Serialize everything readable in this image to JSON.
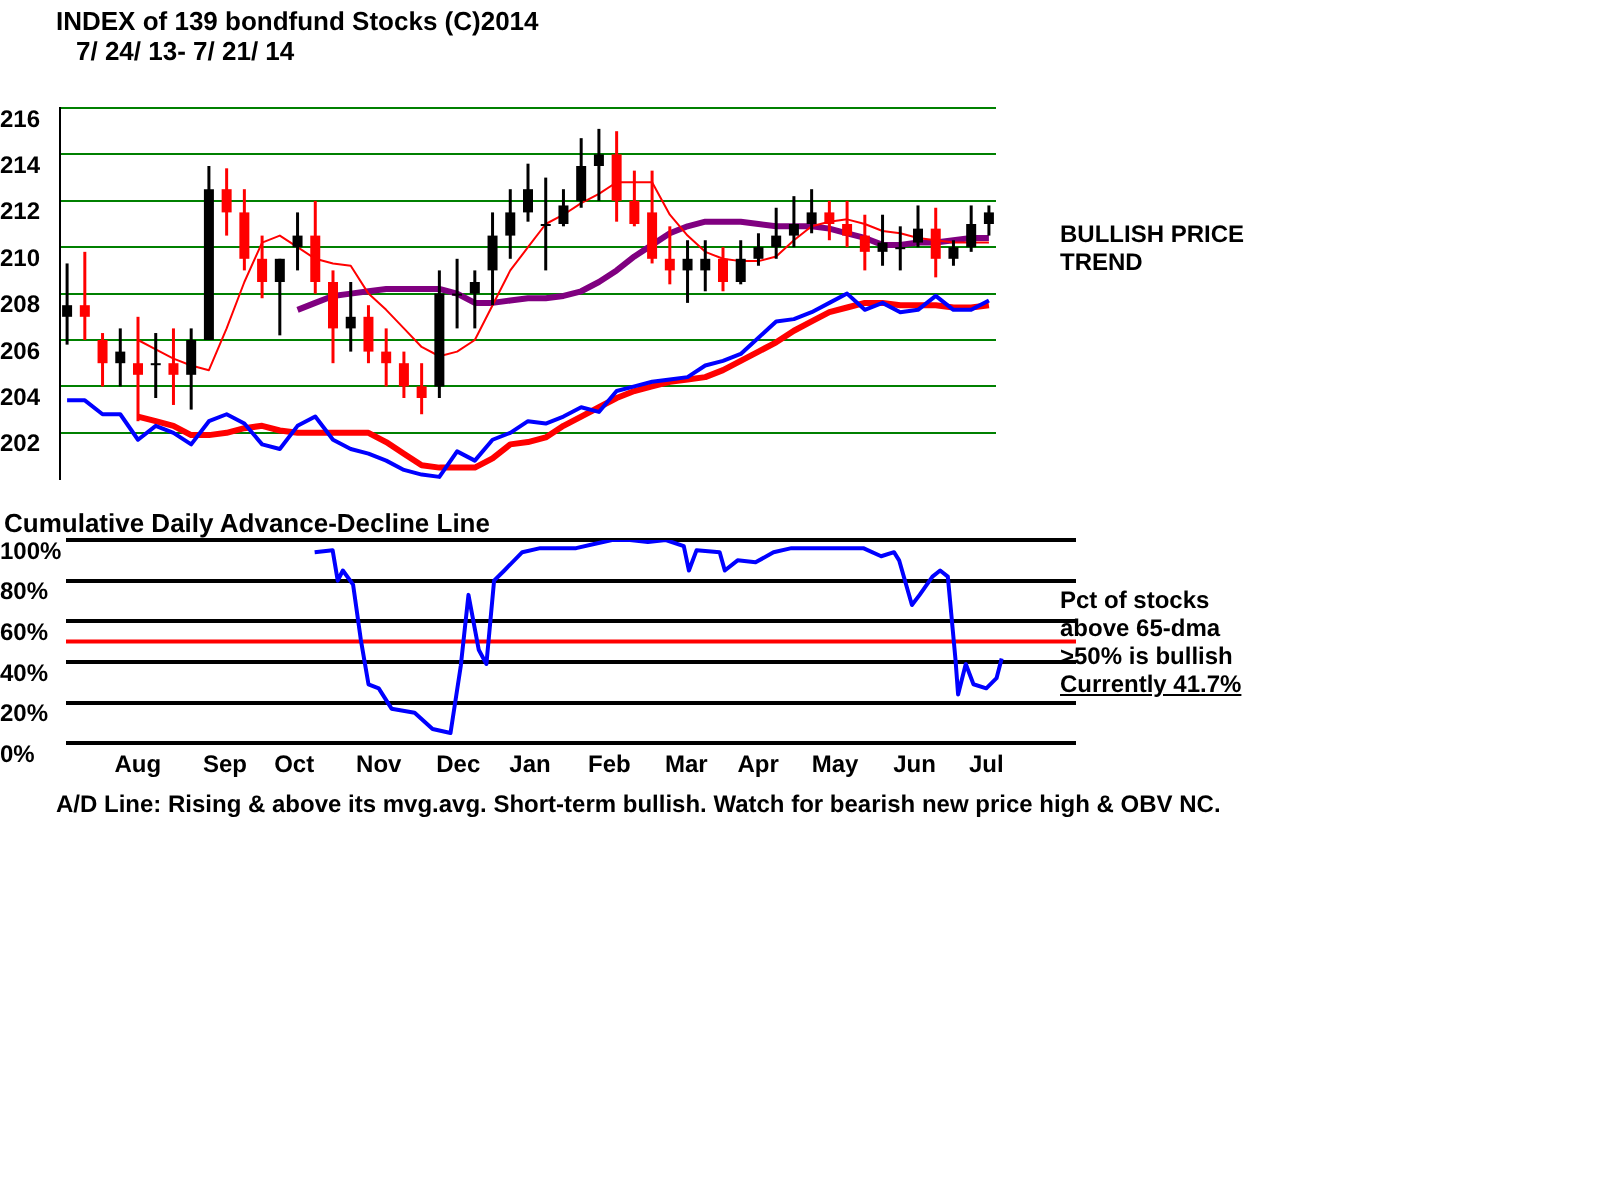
{
  "chart_data": [
    {
      "type": "candlestick",
      "title": "INDEX of  139 bondfund Stocks  (C)2014",
      "subtitle": "7/ 24/ 13- 7/ 21/ 14",
      "categories": [
        null,
        null,
        null,
        null,
        null,
        null,
        null,
        null,
        null,
        null,
        null,
        null,
        null,
        null,
        null,
        null,
        null,
        null,
        null,
        null,
        null,
        null,
        null,
        null,
        null,
        null,
        null,
        null,
        null,
        null,
        null,
        null,
        null,
        null,
        null,
        null,
        null,
        null,
        null,
        null,
        null,
        null,
        null,
        null,
        null,
        null,
        null,
        null,
        null,
        null,
        null,
        null,
        null
      ],
      "colors": [
        "#000000",
        "#ff0000",
        "#ff0000",
        "#000000",
        "#ff0000",
        "#000000",
        "#ff0000",
        "#000000",
        "#000000",
        "#ff0000",
        "#ff0000",
        "#ff0000",
        "#000000",
        "#000000",
        "#ff0000",
        "#ff0000",
        "#000000",
        "#ff0000",
        "#ff0000",
        "#ff0000",
        "#ff0000",
        "#000000",
        "#000000",
        "#000000",
        "#000000",
        "#000000",
        "#000000",
        "#000000",
        "#000000",
        "#000000",
        "#000000",
        "#ff0000",
        "#ff0000",
        "#ff0000",
        "#ff0000",
        "#000000",
        "#000000",
        "#ff0000",
        "#000000",
        "#000000",
        "#000000",
        "#000000",
        "#000000",
        "#ff0000",
        "#ff0000",
        "#ff0000",
        "#000000",
        "#000000",
        "#000000",
        "#ff0000",
        "#000000",
        "#000000",
        "#000000"
      ],
      "ohlc": [
        [
          207,
          209.3,
          205.8,
          207.5
        ],
        [
          207.5,
          209.8,
          206,
          207
        ],
        [
          206,
          206.3,
          204,
          205
        ],
        [
          205,
          206.5,
          204,
          205.5
        ],
        [
          205,
          207,
          202.5,
          204.5
        ],
        [
          205,
          206.3,
          203.5,
          205
        ],
        [
          205,
          206.5,
          203.2,
          204.5
        ],
        [
          204.5,
          206.5,
          203,
          206
        ],
        [
          206,
          213.5,
          206,
          212.5
        ],
        [
          212.5,
          213.4,
          210.5,
          211.5
        ],
        [
          211.5,
          212.5,
          209,
          209.5
        ],
        [
          209.5,
          210.5,
          207.8,
          208.5
        ],
        [
          208.5,
          209.5,
          206.2,
          209.5
        ],
        [
          210,
          211.5,
          209,
          210.5
        ],
        [
          210.5,
          212,
          208,
          208.5
        ],
        [
          208.5,
          209,
          205,
          206.5
        ],
        [
          206.5,
          208.5,
          205.5,
          207
        ],
        [
          207,
          207.5,
          205,
          205.5
        ],
        [
          205.5,
          206.5,
          204,
          205
        ],
        [
          205,
          205.5,
          203.5,
          204
        ],
        [
          204,
          205,
          202.8,
          203.5
        ],
        [
          204,
          209,
          203.5,
          208
        ],
        [
          208,
          209.5,
          206.5,
          208
        ],
        [
          208,
          209,
          206.5,
          208.5
        ],
        [
          209,
          211.5,
          207.5,
          210.5
        ],
        [
          210.5,
          212.5,
          209.5,
          211.5
        ],
        [
          211.5,
          213.6,
          211.1,
          212.5
        ],
        [
          211,
          213,
          209,
          211
        ],
        [
          211,
          212.5,
          210.9,
          211.8
        ],
        [
          212,
          214.7,
          211.7,
          213.5
        ],
        [
          213.5,
          215.1,
          212,
          214
        ],
        [
          214,
          215,
          211.1,
          212
        ],
        [
          212,
          213.3,
          210.9,
          211
        ],
        [
          211.5,
          213.3,
          209.3,
          209.5
        ],
        [
          209.5,
          210.9,
          208.4,
          209
        ],
        [
          209,
          210.3,
          207.6,
          209.5
        ],
        [
          209,
          210.3,
          208.1,
          209.5
        ],
        [
          209.5,
          210,
          208.1,
          208.5
        ],
        [
          208.5,
          210.3,
          208.4,
          209.5
        ],
        [
          209.5,
          210.6,
          209.2,
          210
        ],
        [
          210,
          211.7,
          209.5,
          210.5
        ],
        [
          210.5,
          212.2,
          210,
          211
        ],
        [
          211,
          212.5,
          210.6,
          211.5
        ],
        [
          211.5,
          212,
          210.3,
          211
        ],
        [
          211,
          212,
          210,
          210.5
        ],
        [
          210.5,
          211.4,
          209,
          209.8
        ],
        [
          209.8,
          211.4,
          209.2,
          210.2
        ],
        [
          210,
          210.9,
          209,
          210
        ],
        [
          210.2,
          211.8,
          210,
          210.8
        ],
        [
          210.8,
          211.7,
          208.7,
          209.5
        ],
        [
          209.5,
          210.3,
          209.2,
          210
        ],
        [
          210,
          211.8,
          209.8,
          211
        ],
        [
          211,
          211.8,
          210.5,
          211.5
        ]
      ],
      "series": [
        {
          "type": "line",
          "color": "#ff0000",
          "values": [
            null,
            null,
            null,
            null,
            206.0,
            205.6,
            205.2,
            204.9,
            204.7,
            206.5,
            208.5,
            210.2,
            210.5,
            210,
            209.5,
            209.3,
            209.2,
            208,
            207.3,
            206.5,
            205.7,
            205.3,
            205.5,
            206,
            207.5,
            209,
            210,
            211,
            211.4,
            211.9,
            212.3,
            212.8,
            212.8,
            212.8,
            211.4,
            210.5,
            209.8,
            209.5,
            209.4,
            209.4,
            209.6,
            210.3,
            210.9,
            211.1,
            211.2,
            211,
            210.7,
            210.6,
            210.4,
            210.3,
            210.2,
            210.2,
            210.2
          ]
        },
        {
          "type": "line",
          "color": "#800080",
          "values": [
            null,
            null,
            null,
            null,
            null,
            null,
            null,
            null,
            null,
            null,
            null,
            null,
            null,
            207.3,
            207.6,
            207.9,
            208,
            208.1,
            208.2,
            208.2,
            208.2,
            208.2,
            208,
            207.6,
            207.6,
            207.7,
            207.8,
            207.8,
            207.9,
            208.1,
            208.5,
            209,
            209.6,
            210.1,
            210.6,
            210.9,
            211.1,
            211.1,
            211.1,
            211,
            210.9,
            210.9,
            210.9,
            210.8,
            210.6,
            210.4,
            210.1,
            210.1,
            210.2,
            210.2,
            210.3,
            210.4,
            210.4
          ]
        },
        {
          "type": "line",
          "color": "#0000ff",
          "values": [
            203.4,
            203.4,
            202.8,
            202.8,
            201.7,
            202.3,
            202,
            201.5,
            202.5,
            202.8,
            202.4,
            201.5,
            201.3,
            202.3,
            202.7,
            201.7,
            201.3,
            201.1,
            200.8,
            200.4,
            200.2,
            200.1,
            201.2,
            200.8,
            201.7,
            202,
            202.5,
            202.4,
            202.7,
            203.1,
            202.9,
            203.8,
            204,
            204.2,
            204.3,
            204.4,
            204.9,
            205.1,
            205.4,
            206.1,
            206.8,
            206.9,
            207.2,
            207.6,
            208,
            207.3,
            207.6,
            207.2,
            207.3,
            207.9,
            207.3,
            207.3,
            207.7
          ]
        },
        {
          "type": "line",
          "color": "#ff0000",
          "values": [
            null,
            null,
            null,
            null,
            202.7,
            202.5,
            202.3,
            201.9,
            201.9,
            202,
            202.2,
            202.3,
            202.1,
            202,
            202,
            202,
            202,
            202,
            201.6,
            201.1,
            200.6,
            200.5,
            200.5,
            200.5,
            200.9,
            201.5,
            201.6,
            201.8,
            202.3,
            202.7,
            203.1,
            203.5,
            203.8,
            204,
            204.2,
            204.3,
            204.4,
            204.7,
            205.1,
            205.5,
            205.9,
            206.4,
            206.8,
            207.2,
            207.4,
            207.6,
            207.6,
            207.5,
            207.5,
            207.5,
            207.4,
            207.4,
            207.5
          ]
        }
      ],
      "ylim": [
        200,
        216
      ],
      "yticks": [
        202,
        204,
        206,
        208,
        210,
        212,
        214,
        216
      ],
      "tick_labels": "y",
      "grid": "y",
      "annotations": [
        "BULLISH PRICE TREND"
      ]
    },
    {
      "type": "line",
      "title": "Cumulative Daily Advance-Decline Line",
      "x": [
        "2013-10-26",
        "2013-11-02",
        "2013-11-04",
        "2013-11-06",
        "2013-11-10",
        "2013-11-13",
        "2013-11-16",
        "2013-11-20",
        "2013-11-25",
        "2013-12-04",
        "2013-12-11",
        "2013-12-18",
        "2013-12-22",
        "2013-12-25",
        "2013-12-29",
        "2014-01-01",
        "2014-01-04",
        "2014-01-08",
        "2014-01-15",
        "2014-01-22",
        "2014-01-29",
        "2014-02-05",
        "2014-02-12",
        "2014-02-19",
        "2014-02-26",
        "2014-03-05",
        "2014-03-12",
        "2014-03-19",
        "2014-03-21",
        "2014-03-24",
        "2014-04-02",
        "2014-04-04",
        "2014-04-09",
        "2014-04-16",
        "2014-04-23",
        "2014-04-30",
        "2014-05-07",
        "2014-05-14",
        "2014-05-21",
        "2014-05-28",
        "2014-06-04",
        "2014-06-09",
        "2014-06-11",
        "2014-06-16",
        "2014-06-19",
        "2014-06-24",
        "2014-06-27",
        "2014-06-30",
        "2014-07-03",
        "2014-07-04",
        "2014-07-07",
        "2014-07-10",
        "2014-07-15",
        "2014-07-19",
        "2014-07-21"
      ],
      "series": [
        {
          "color": "#0000ff",
          "values": [
            94,
            95,
            80,
            85,
            78,
            51,
            29,
            27,
            17,
            15,
            7,
            5,
            38,
            73,
            46,
            39,
            80,
            85,
            94,
            96,
            96,
            96,
            98,
            100,
            100,
            99,
            100,
            97,
            85,
            95,
            94,
            85,
            90,
            89,
            94,
            96,
            96,
            96,
            96,
            96,
            92,
            94,
            90,
            68,
            73,
            82,
            85,
            82,
            41,
            24,
            39,
            29,
            27,
            32,
            41.7
          ]
        }
      ],
      "xlim": [
        "2013-07-21",
        "2014-08-19"
      ],
      "xticks": [
        {
          "value": "2013-08-18",
          "label": "Aug"
        },
        {
          "value": "2013-09-21",
          "label": "Sep"
        },
        {
          "value": "2013-10-18",
          "label": "Oct"
        },
        {
          "value": "2013-11-20",
          "label": "Nov"
        },
        {
          "value": "2013-12-21",
          "label": "Dec"
        },
        {
          "value": "2014-01-18",
          "label": "Jan"
        },
        {
          "value": "2014-02-18",
          "label": "Feb"
        },
        {
          "value": "2014-03-20",
          "label": "Mar"
        },
        {
          "value": "2014-04-17",
          "label": "Apr"
        },
        {
          "value": "2014-05-17",
          "label": "May"
        },
        {
          "value": "2014-06-17",
          "label": "Jun"
        },
        {
          "value": "2014-07-15",
          "label": "Jul"
        }
      ],
      "ylim": [
        0,
        100
      ],
      "yticks": [
        {
          "value": 0,
          "label": "0%"
        },
        {
          "value": 20,
          "label": "20%"
        },
        {
          "value": 40,
          "label": "40%"
        },
        {
          "value": 60,
          "label": "60%"
        },
        {
          "value": 80,
          "label": "80%"
        },
        {
          "value": 100,
          "label": "100%"
        }
      ],
      "grid": "y",
      "ref_lines": [
        {
          "axis": "y",
          "value": 50,
          "color": "#ff0000"
        }
      ],
      "annotations": [
        "Pct of stocks above 65-dma",
        ">50% is bullish",
        "Currently  41.7%",
        "A/D Line: Rising & above its mvg.avg. Short-term bullish. Watch for bearish new price high & OBV NC."
      ]
    }
  ]
}
